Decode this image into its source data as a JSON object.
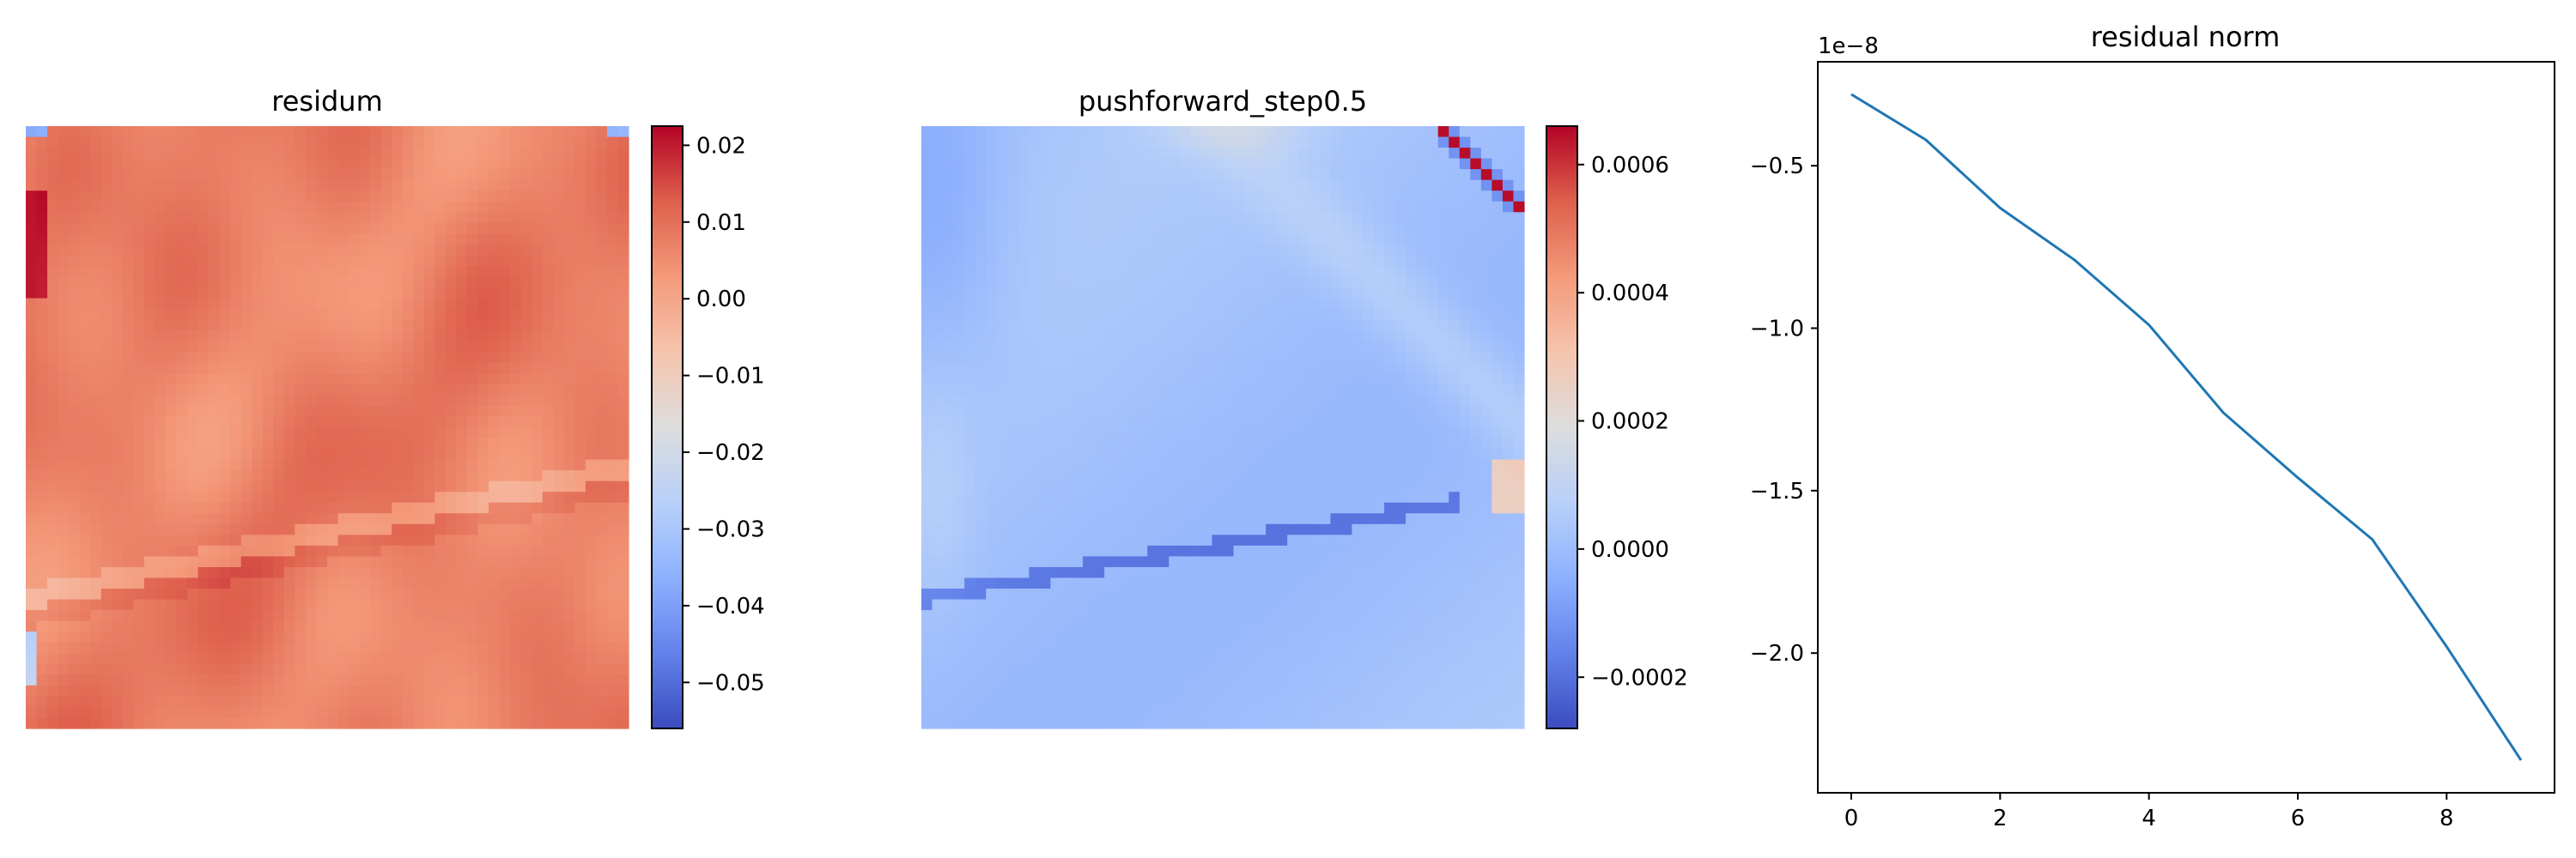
{
  "chart_data": [
    {
      "type": "heatmap",
      "title": "residum",
      "colormap": "coolwarm",
      "grid_size": [
        56,
        56
      ],
      "vmin": -0.056,
      "vmax": 0.0225,
      "colorbar_ticks": [
        0.02,
        0.01,
        0.0,
        -0.01,
        -0.02,
        -0.03,
        -0.04,
        -0.05
      ],
      "colorbar_tick_labels": [
        "0.02",
        "0.01",
        "0.00",
        "−0.01",
        "−0.02",
        "−0.03",
        "−0.04",
        "−0.05"
      ],
      "typical_value": 0.007,
      "value_range_observed": [
        -0.045,
        0.022
      ]
    },
    {
      "type": "heatmap",
      "title": "pushforward_step0.5",
      "colormap": "coolwarm",
      "grid_size": [
        56,
        56
      ],
      "vmin": -0.00028,
      "vmax": 0.00066,
      "colorbar_ticks": [
        0.0006,
        0.0004,
        0.0002,
        0.0,
        -0.0002
      ],
      "colorbar_tick_labels": [
        "0.0006",
        "0.0004",
        "0.0002",
        "0.0000",
        "−0.0002"
      ],
      "typical_value": 4e-05,
      "value_range_observed": [
        -0.0002,
        0.00066
      ]
    },
    {
      "type": "line",
      "title": "residual norm",
      "offset_label": "1e−8",
      "x": [
        0,
        1,
        2,
        3,
        4,
        5,
        6,
        7,
        8,
        9
      ],
      "series": [
        {
          "values": [
            -0.28,
            -0.42,
            -0.63,
            -0.79,
            -0.99,
            -1.26,
            -1.46,
            -1.65,
            -1.98,
            -2.33
          ],
          "color": "#1f77b4"
        }
      ],
      "xlim": [
        -0.45,
        9.45
      ],
      "ylim": [
        -2.43,
        -0.18
      ],
      "xticks": [
        0,
        2,
        4,
        6,
        8
      ],
      "xtick_labels": [
        "0",
        "2",
        "4",
        "6",
        "8"
      ],
      "yticks": [
        -0.5,
        -1.0,
        -1.5,
        -2.0
      ],
      "ytick_labels": [
        "−0.5",
        "−1.0",
        "−1.5",
        "−2.0"
      ],
      "xlabel": "",
      "ylabel": "",
      "grid": false
    }
  ]
}
